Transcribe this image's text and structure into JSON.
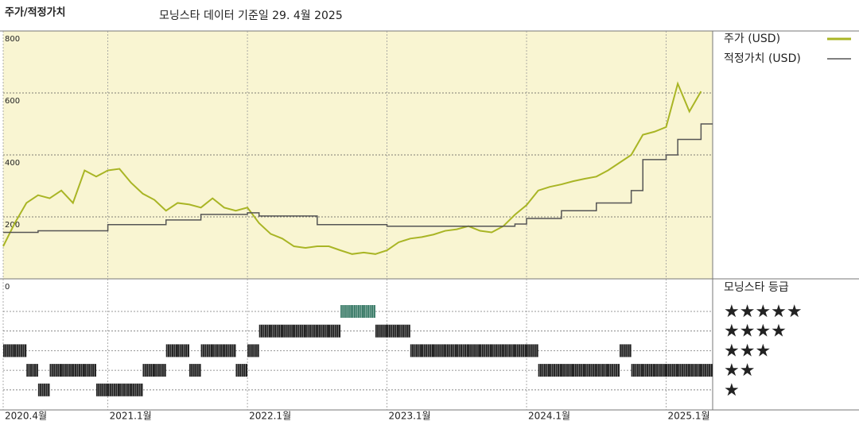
{
  "chart_data": {
    "type": "line",
    "title": "주가/적정가치",
    "subtitle": "모닝스타 데이터 기준일 29. 4월 2025",
    "x": [
      "2020-04",
      "2020-05",
      "2020-06",
      "2020-07",
      "2020-08",
      "2020-09",
      "2020-10",
      "2020-11",
      "2020-12",
      "2021-01",
      "2021-02",
      "2021-03",
      "2021-04",
      "2021-05",
      "2021-06",
      "2021-07",
      "2021-08",
      "2021-09",
      "2021-10",
      "2021-11",
      "2021-12",
      "2022-01",
      "2022-02",
      "2022-03",
      "2022-04",
      "2022-05",
      "2022-06",
      "2022-07",
      "2022-08",
      "2022-09",
      "2022-10",
      "2022-11",
      "2022-12",
      "2023-01",
      "2023-02",
      "2023-03",
      "2023-04",
      "2023-05",
      "2023-06",
      "2023-07",
      "2023-08",
      "2023-09",
      "2023-10",
      "2023-11",
      "2023-12",
      "2024-01",
      "2024-02",
      "2024-03",
      "2024-04",
      "2024-05",
      "2024-06",
      "2024-07",
      "2024-08",
      "2024-09",
      "2024-10",
      "2024-11",
      "2024-12",
      "2025-01",
      "2025-02",
      "2025-03",
      "2025-04"
    ],
    "series": [
      {
        "name": "주가 (USD)",
        "color": "#a9b525",
        "step": false,
        "values": [
          105,
          180,
          245,
          270,
          260,
          285,
          245,
          350,
          330,
          350,
          355,
          310,
          275,
          255,
          220,
          245,
          240,
          230,
          260,
          230,
          220,
          230,
          180,
          145,
          130,
          105,
          100,
          105,
          105,
          92,
          80,
          85,
          80,
          92,
          118,
          130,
          135,
          143,
          155,
          160,
          170,
          155,
          150,
          170,
          207,
          238,
          285,
          297,
          305,
          315,
          323,
          330,
          350,
          375,
          400,
          465,
          475,
          490,
          630,
          540,
          605
        ]
      },
      {
        "name": "적정가치 (USD)",
        "color": "#555555",
        "step": true,
        "values": [
          150,
          150,
          150,
          155,
          155,
          155,
          155,
          155,
          155,
          175,
          175,
          175,
          175,
          175,
          190,
          190,
          190,
          208,
          208,
          208,
          208,
          213,
          203,
          203,
          203,
          203,
          203,
          175,
          175,
          175,
          175,
          175,
          175,
          170,
          170,
          170,
          170,
          170,
          170,
          170,
          170,
          170,
          170,
          170,
          177,
          195,
          195,
          195,
          220,
          220,
          220,
          245,
          245,
          245,
          285,
          385,
          385,
          400,
          450,
          450,
          500
        ]
      }
    ],
    "xlim": [
      "2020-04",
      "2025-05"
    ],
    "xticks": [
      {
        "value": "2020-04",
        "label": "2020.4월"
      },
      {
        "value": "2021-01",
        "label": "2021.1월"
      },
      {
        "value": "2022-01",
        "label": "2022.1월"
      },
      {
        "value": "2023-01",
        "label": "2023.1월"
      },
      {
        "value": "2024-01",
        "label": "2024.1월"
      },
      {
        "value": "2025-01",
        "label": "2025.1월"
      }
    ],
    "ylim": [
      0,
      800
    ],
    "yticks": [
      0,
      200,
      400,
      600,
      800
    ],
    "grid": true,
    "ratings": {
      "title": "모닝스타 등급",
      "levels": [
        5,
        4,
        3,
        2,
        1
      ],
      "level_labels": [
        "★★★★★",
        "★★★★",
        "★★★",
        "★★",
        "★"
      ],
      "colors": [
        "#3d7d6a",
        "#222222",
        "#222222",
        "#222222",
        "#222222"
      ],
      "values": [
        3,
        3,
        2,
        1,
        2,
        2,
        2,
        2,
        1,
        1,
        1,
        1,
        2,
        2,
        3,
        3,
        2,
        3,
        3,
        3,
        2,
        3,
        4,
        4,
        4,
        4,
        4,
        4,
        4,
        5,
        5,
        5,
        4,
        4,
        4,
        3,
        3,
        3,
        3,
        3,
        3,
        3,
        3,
        3,
        3,
        3,
        2,
        2,
        2,
        2,
        2,
        2,
        2,
        3,
        2,
        2,
        2,
        2,
        2,
        2,
        2
      ]
    }
  }
}
